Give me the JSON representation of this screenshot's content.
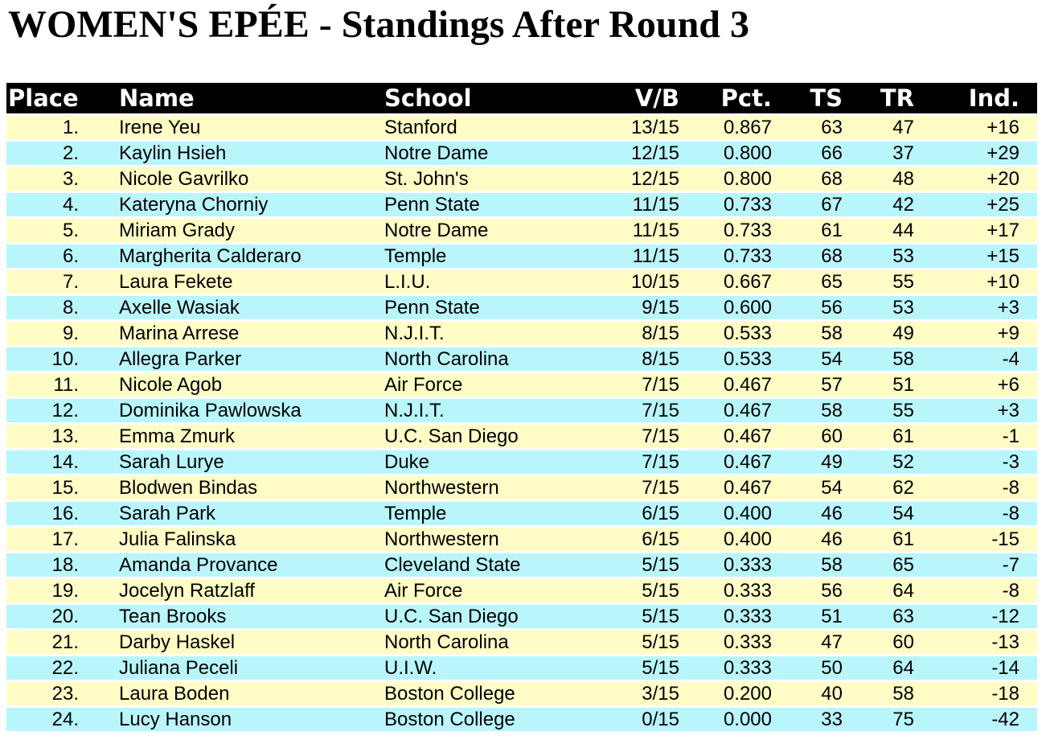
{
  "title": "WOMEN'S EPÉE - Standings After Round 3",
  "table": {
    "columns": [
      {
        "key": "place",
        "label": "Place"
      },
      {
        "key": "name",
        "label": "Name"
      },
      {
        "key": "school",
        "label": "School"
      },
      {
        "key": "vb",
        "label": "V/B"
      },
      {
        "key": "pct",
        "label": "Pct."
      },
      {
        "key": "ts",
        "label": "TS"
      },
      {
        "key": "tr",
        "label": "TR"
      },
      {
        "key": "ind",
        "label": "Ind."
      }
    ],
    "colors": {
      "header_bg": "#000000",
      "header_text": "#FFFFFF",
      "row_yellow": "#FFFCC5",
      "row_cyan": "#B8F6FC"
    },
    "rows": [
      {
        "place": "1.",
        "name": "Irene Yeu",
        "school": "Stanford",
        "vb": "13/15",
        "pct": "0.867",
        "ts": "63",
        "tr": "47",
        "ind": "+16"
      },
      {
        "place": "2.",
        "name": "Kaylin Hsieh",
        "school": "Notre Dame",
        "vb": "12/15",
        "pct": "0.800",
        "ts": "66",
        "tr": "37",
        "ind": "+29"
      },
      {
        "place": "3.",
        "name": "Nicole Gavrilko",
        "school": "St. John's",
        "vb": "12/15",
        "pct": "0.800",
        "ts": "68",
        "tr": "48",
        "ind": "+20"
      },
      {
        "place": "4.",
        "name": "Kateryna Chorniy",
        "school": "Penn State",
        "vb": "11/15",
        "pct": "0.733",
        "ts": "67",
        "tr": "42",
        "ind": "+25"
      },
      {
        "place": "5.",
        "name": "Miriam Grady",
        "school": "Notre Dame",
        "vb": "11/15",
        "pct": "0.733",
        "ts": "61",
        "tr": "44",
        "ind": "+17"
      },
      {
        "place": "6.",
        "name": "Margherita Calderaro",
        "school": "Temple",
        "vb": "11/15",
        "pct": "0.733",
        "ts": "68",
        "tr": "53",
        "ind": "+15"
      },
      {
        "place": "7.",
        "name": "Laura Fekete",
        "school": "L.I.U.",
        "vb": "10/15",
        "pct": "0.667",
        "ts": "65",
        "tr": "55",
        "ind": "+10"
      },
      {
        "place": "8.",
        "name": "Axelle Wasiak",
        "school": "Penn State",
        "vb": "9/15",
        "pct": "0.600",
        "ts": "56",
        "tr": "53",
        "ind": "+3"
      },
      {
        "place": "9.",
        "name": "Marina Arrese",
        "school": "N.J.I.T.",
        "vb": "8/15",
        "pct": "0.533",
        "ts": "58",
        "tr": "49",
        "ind": "+9"
      },
      {
        "place": "10.",
        "name": "Allegra Parker",
        "school": "North Carolina",
        "vb": "8/15",
        "pct": "0.533",
        "ts": "54",
        "tr": "58",
        "ind": "-4"
      },
      {
        "place": "11.",
        "name": "Nicole Agob",
        "school": "Air Force",
        "vb": "7/15",
        "pct": "0.467",
        "ts": "57",
        "tr": "51",
        "ind": "+6"
      },
      {
        "place": "12.",
        "name": "Dominika Pawlowska",
        "school": "N.J.I.T.",
        "vb": "7/15",
        "pct": "0.467",
        "ts": "58",
        "tr": "55",
        "ind": "+3"
      },
      {
        "place": "13.",
        "name": "Emma Zmurk",
        "school": "U.C. San Diego",
        "vb": "7/15",
        "pct": "0.467",
        "ts": "60",
        "tr": "61",
        "ind": "-1"
      },
      {
        "place": "14.",
        "name": "Sarah Lurye",
        "school": "Duke",
        "vb": "7/15",
        "pct": "0.467",
        "ts": "49",
        "tr": "52",
        "ind": "-3"
      },
      {
        "place": "15.",
        "name": "Blodwen Bindas",
        "school": "Northwestern",
        "vb": "7/15",
        "pct": "0.467",
        "ts": "54",
        "tr": "62",
        "ind": "-8"
      },
      {
        "place": "16.",
        "name": "Sarah Park",
        "school": "Temple",
        "vb": "6/15",
        "pct": "0.400",
        "ts": "46",
        "tr": "54",
        "ind": "-8"
      },
      {
        "place": "17.",
        "name": "Julia Falinska",
        "school": "Northwestern",
        "vb": "6/15",
        "pct": "0.400",
        "ts": "46",
        "tr": "61",
        "ind": "-15"
      },
      {
        "place": "18.",
        "name": "Amanda Provance",
        "school": "Cleveland State",
        "vb": "5/15",
        "pct": "0.333",
        "ts": "58",
        "tr": "65",
        "ind": "-7"
      },
      {
        "place": "19.",
        "name": "Jocelyn Ratzlaff",
        "school": "Air Force",
        "vb": "5/15",
        "pct": "0.333",
        "ts": "56",
        "tr": "64",
        "ind": "-8"
      },
      {
        "place": "20.",
        "name": "Tean Brooks",
        "school": "U.C. San Diego",
        "vb": "5/15",
        "pct": "0.333",
        "ts": "51",
        "tr": "63",
        "ind": "-12"
      },
      {
        "place": "21.",
        "name": "Darby Haskel",
        "school": "North Carolina",
        "vb": "5/15",
        "pct": "0.333",
        "ts": "47",
        "tr": "60",
        "ind": "-13"
      },
      {
        "place": "22.",
        "name": "Juliana Peceli",
        "school": "U.I.W.",
        "vb": "5/15",
        "pct": "0.333",
        "ts": "50",
        "tr": "64",
        "ind": "-14"
      },
      {
        "place": "23.",
        "name": "Laura Boden",
        "school": "Boston College",
        "vb": "3/15",
        "pct": "0.200",
        "ts": "40",
        "tr": "58",
        "ind": "-18"
      },
      {
        "place": "24.",
        "name": "Lucy Hanson",
        "school": "Boston College",
        "vb": "0/15",
        "pct": "0.000",
        "ts": "33",
        "tr": "75",
        "ind": "-42"
      }
    ]
  }
}
